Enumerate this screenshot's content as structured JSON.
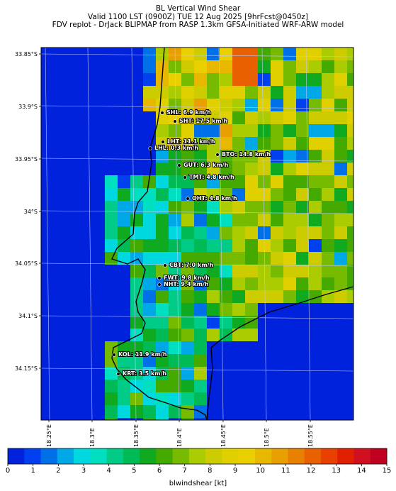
{
  "header": {
    "line1": "BL Vertical Wind Shear",
    "line2": "Valid 1100 LST (0900Z) TUE 12 Aug 2025 [9hrFcst@0450z]",
    "line3": "FDV replot - DrJack BLIPMAP from RASP 1.3km GFSA-Initiated WRF-ARW model"
  },
  "axes": {
    "lat_ticks": [
      "33.85°S",
      "33.9°S",
      "33.95°S",
      "34°S",
      "34.05°S",
      "34.1°S",
      "34.15°S"
    ],
    "lon_ticks": [
      "18.25°E",
      "18.3°E",
      "18.35°E",
      "18.4°E",
      "18.45°E",
      "18.5°E",
      "18.55°E"
    ]
  },
  "stations": [
    {
      "code": "SHL",
      "label": "SHL: 6.9 km/h"
    },
    {
      "code": "SHT",
      "label": "SHT: 17.5 km/h"
    },
    {
      "code": "LHT",
      "label": "LHT: 11.1 km/h"
    },
    {
      "code": "LHL",
      "label": "LHL: 0.3 km/h"
    },
    {
      "code": "BTO",
      "label": "BTO: 14.8 km/h"
    },
    {
      "code": "GUT",
      "label": "GUT: 6.3 km/h"
    },
    {
      "code": "TMT",
      "label": "TMT: 4.8 km/h"
    },
    {
      "code": "OHT",
      "label": "OHT: 4.8 km/h"
    },
    {
      "code": "CBT",
      "label": "CBT: 7.0 km/h"
    },
    {
      "code": "FWT",
      "label": "FWT: 9.8 km/h"
    },
    {
      "code": "NHT",
      "label": "NHT: 9.4 km/h"
    },
    {
      "code": "KOL",
      "label": "KOL: 11.9 km/h"
    },
    {
      "code": "KRT",
      "label": "KRT: 3.5 km/h"
    }
  ],
  "colorbar": {
    "title": "blwindshear [kt]",
    "ticks": [
      "0",
      "1",
      "2",
      "3",
      "4",
      "5",
      "6",
      "7",
      "8",
      "9",
      "10",
      "11",
      "12",
      "13",
      "14",
      "15"
    ],
    "colors": [
      "#0022dd",
      "#0040ee",
      "#0070e8",
      "#00a8e8",
      "#00d8e0",
      "#00e0c0",
      "#00cc88",
      "#00bb55",
      "#10aa20",
      "#44aa00",
      "#77bb00",
      "#aacc00",
      "#cccc00",
      "#e0d000",
      "#ead000",
      "#e8b800",
      "#e8a000",
      "#e88000",
      "#e86000",
      "#e84000",
      "#e02000",
      "#d01020",
      "#c00020"
    ]
  }
}
